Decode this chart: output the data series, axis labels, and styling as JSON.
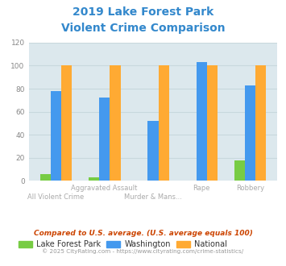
{
  "title_line1": "2019 Lake Forest Park",
  "title_line2": "Violent Crime Comparison",
  "lake_forest_park": [
    6,
    3,
    0,
    0,
    18
  ],
  "washington": [
    78,
    72,
    52,
    103,
    83
  ],
  "national": [
    100,
    100,
    100,
    100,
    100
  ],
  "colors": {
    "lake_forest_park": "#77cc44",
    "washington": "#4499ee",
    "national": "#ffaa33"
  },
  "ylim": [
    0,
    120
  ],
  "yticks": [
    0,
    20,
    40,
    60,
    80,
    100,
    120
  ],
  "title_color": "#3388cc",
  "plot_bg": "#dce8ed",
  "grid_color": "#c8d8dd",
  "legend_labels": [
    "Lake Forest Park",
    "Washington",
    "National"
  ],
  "footnote1": "Compared to U.S. average. (U.S. average equals 100)",
  "footnote2": "© 2025 CityRating.com - https://www.cityrating.com/crime-statistics/",
  "footnote1_color": "#cc4400",
  "footnote2_color": "#999999"
}
